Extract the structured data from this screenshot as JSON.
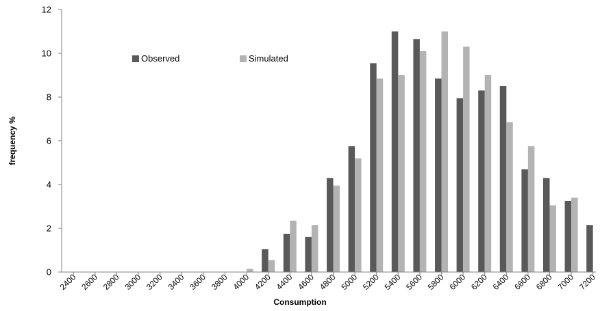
{
  "chart_data": {
    "type": "bar",
    "xlabel": "Consumption",
    "ylabel": "frequency %",
    "ylim": [
      0,
      12
    ],
    "yticks": [
      0,
      2,
      4,
      6,
      8,
      10,
      12
    ],
    "categories": [
      "2400",
      "2600",
      "2800",
      "3000",
      "3200",
      "3400",
      "3600",
      "3800",
      "4000",
      "4200",
      "4400",
      "4600",
      "4800",
      "5000",
      "5200",
      "5400",
      "5600",
      "5800",
      "6000",
      "6200",
      "6400",
      "6600",
      "6800",
      "7000",
      "7200"
    ],
    "series": [
      {
        "name": "Observed",
        "color": "#595959",
        "values": [
          0,
          0,
          0,
          0,
          0,
          0,
          0,
          0,
          0,
          1.05,
          1.75,
          1.6,
          4.3,
          5.75,
          9.55,
          11.0,
          10.65,
          8.85,
          7.95,
          8.3,
          8.5,
          4.7,
          4.3,
          3.25,
          2.15
        ]
      },
      {
        "name": "Simulated",
        "color": "#b3b3b3",
        "values": [
          0,
          0,
          0,
          0,
          0,
          0,
          0,
          0,
          0.15,
          0.55,
          2.35,
          2.15,
          3.95,
          5.2,
          8.85,
          9.0,
          10.1,
          11.0,
          10.3,
          9.0,
          6.85,
          5.75,
          3.05,
          3.4,
          null
        ]
      }
    ],
    "grid": false,
    "legend_position": "top-left"
  }
}
